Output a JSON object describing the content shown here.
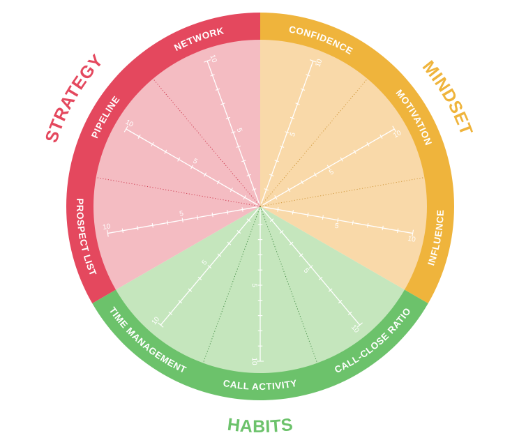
{
  "categories": [
    {
      "name": "STRATEGY",
      "ring_color": "#e4485e",
      "fill_color": "#f4bcc2",
      "divider_color": "#c9283f"
    },
    {
      "name": "MINDSET",
      "ring_color": "#efb43c",
      "fill_color": "#f9d9a9",
      "divider_color": "#c98d2a"
    },
    {
      "name": "HABITS",
      "ring_color": "#6cc26b",
      "fill_color": "#c5e6bd",
      "divider_color": "#2f7f33"
    }
  ],
  "segments": [
    {
      "label": "CONFIDENCE",
      "category": 1
    },
    {
      "label": "MOTIVATION",
      "category": 1
    },
    {
      "label": "INFLUENCE",
      "category": 1
    },
    {
      "label": "CALL-CLOSE RATIO",
      "category": 2
    },
    {
      "label": "CALL ACTIVITY",
      "category": 2
    },
    {
      "label": "TIME MANAGEMENT",
      "category": 2
    },
    {
      "label": "PROSPECT LIST",
      "category": 0
    },
    {
      "label": "PIPELINE",
      "category": 0
    },
    {
      "label": "NETWORK",
      "category": 0
    }
  ],
  "scale": {
    "mid_label": "5",
    "max_label": "10",
    "steps": 10
  }
}
